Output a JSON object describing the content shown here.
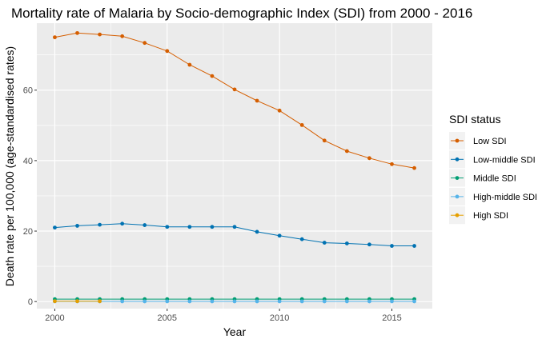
{
  "chart_data": {
    "type": "line",
    "title": "Mortality rate of Malaria by Socio-demographic Index (SDI) from 2000 - 2016",
    "xlabel": "Year",
    "ylabel": "Death rate per 100,000 (age-standardised rates)",
    "x": [
      2000,
      2001,
      2002,
      2003,
      2004,
      2005,
      2006,
      2007,
      2008,
      2009,
      2010,
      2011,
      2012,
      2013,
      2014,
      2015,
      2016
    ],
    "xlim": [
      1999.2,
      2016.8
    ],
    "ylim": [
      -2.0,
      79.0
    ],
    "x_ticks": [
      2000,
      2005,
      2010,
      2015
    ],
    "y_ticks": [
      0,
      20,
      40,
      60
    ],
    "grid": true,
    "legend": {
      "title": "SDI status",
      "placement": "right"
    },
    "series": [
      {
        "name": "Low SDI",
        "color": "#d55e00",
        "values": [
          75.0,
          76.2,
          75.8,
          75.3,
          73.4,
          71.1,
          67.2,
          64.0,
          60.2,
          57.0,
          54.2,
          50.1,
          45.7,
          42.7,
          40.7,
          39.0,
          37.9
        ]
      },
      {
        "name": "Low-middle SDI",
        "color": "#0072b2",
        "values": [
          21.0,
          21.5,
          21.8,
          22.1,
          21.7,
          21.2,
          21.2,
          21.2,
          21.2,
          19.8,
          18.7,
          17.7,
          16.7,
          16.5,
          16.2,
          15.8,
          15.8
        ]
      },
      {
        "name": "Middle SDI",
        "color": "#009e73",
        "values": [
          0.7,
          0.7,
          0.7,
          0.7,
          0.7,
          0.7,
          0.7,
          0.7,
          0.7,
          0.7,
          0.7,
          0.7,
          0.7,
          0.7,
          0.7,
          0.7,
          0.7
        ]
      },
      {
        "name": "High-middle SDI",
        "color": "#56b4e9",
        "values": [
          0.05,
          0.05,
          0.05,
          0.05,
          0.05,
          0.05,
          0.05,
          0.05,
          0.05,
          0.05,
          0.05,
          0.05,
          0.05,
          0.05,
          0.05,
          0.05,
          0.05
        ]
      },
      {
        "name": "High SDI",
        "color": "#e69f00",
        "x": [
          2000,
          2001,
          2002
        ],
        "values": [
          0.1,
          0.1,
          0.1
        ]
      }
    ]
  }
}
